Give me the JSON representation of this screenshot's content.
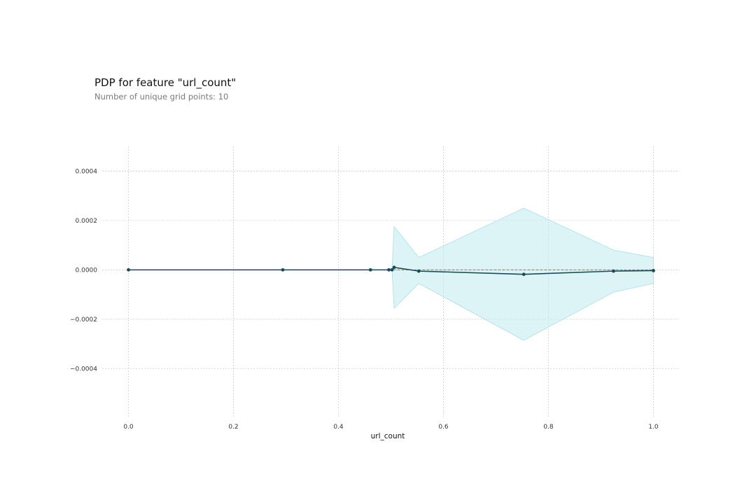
{
  "chart_data": {
    "type": "line",
    "title": "PDP for feature \"url_count\"",
    "subtitle": "Number of unique grid points: 10",
    "xlabel": "url_count",
    "ylabel": "",
    "xlim": [
      -0.05,
      1.05
    ],
    "ylim": [
      -0.0006,
      0.0005
    ],
    "xticks": [
      0.0,
      0.2,
      0.4,
      0.6,
      0.8,
      1.0
    ],
    "xtick_labels": [
      "0.0",
      "0.2",
      "0.4",
      "0.6",
      "0.8",
      "1.0"
    ],
    "yticks": [
      0.0004,
      0.0002,
      0.0,
      -0.0002,
      -0.0004
    ],
    "ytick_labels": [
      "0.0004",
      "0.0002",
      "0.0000",
      "−0.0002",
      "−0.0004"
    ],
    "grid": true,
    "reference_line": {
      "y": 0.0,
      "color": "#d9534f",
      "style": "dashed"
    },
    "series": [
      {
        "x": [
          0.0,
          0.294,
          0.461,
          0.496,
          0.502,
          0.506,
          0.553,
          0.753,
          0.924,
          1.0
        ],
        "y": [
          0.0,
          0.0,
          0.0,
          0.0,
          0.0,
          1e-05,
          -5e-06,
          -1.8e-05,
          -5e-06,
          -3e-06
        ],
        "upper": [
          0.0,
          0.0,
          0.0,
          0.0,
          0.0,
          0.000175,
          5e-05,
          0.00025,
          8e-05,
          5e-05
        ],
        "lower": [
          0.0,
          0.0,
          0.0,
          0.0,
          0.0,
          -0.000155,
          -5.5e-05,
          -0.000285,
          -9e-05,
          -5.5e-05
        ]
      }
    ],
    "colors": {
      "line": "#1a4a5a",
      "band": "#c6ecf2",
      "band_edge": "#a9dfe8",
      "grid": "#c8c8c8"
    }
  }
}
